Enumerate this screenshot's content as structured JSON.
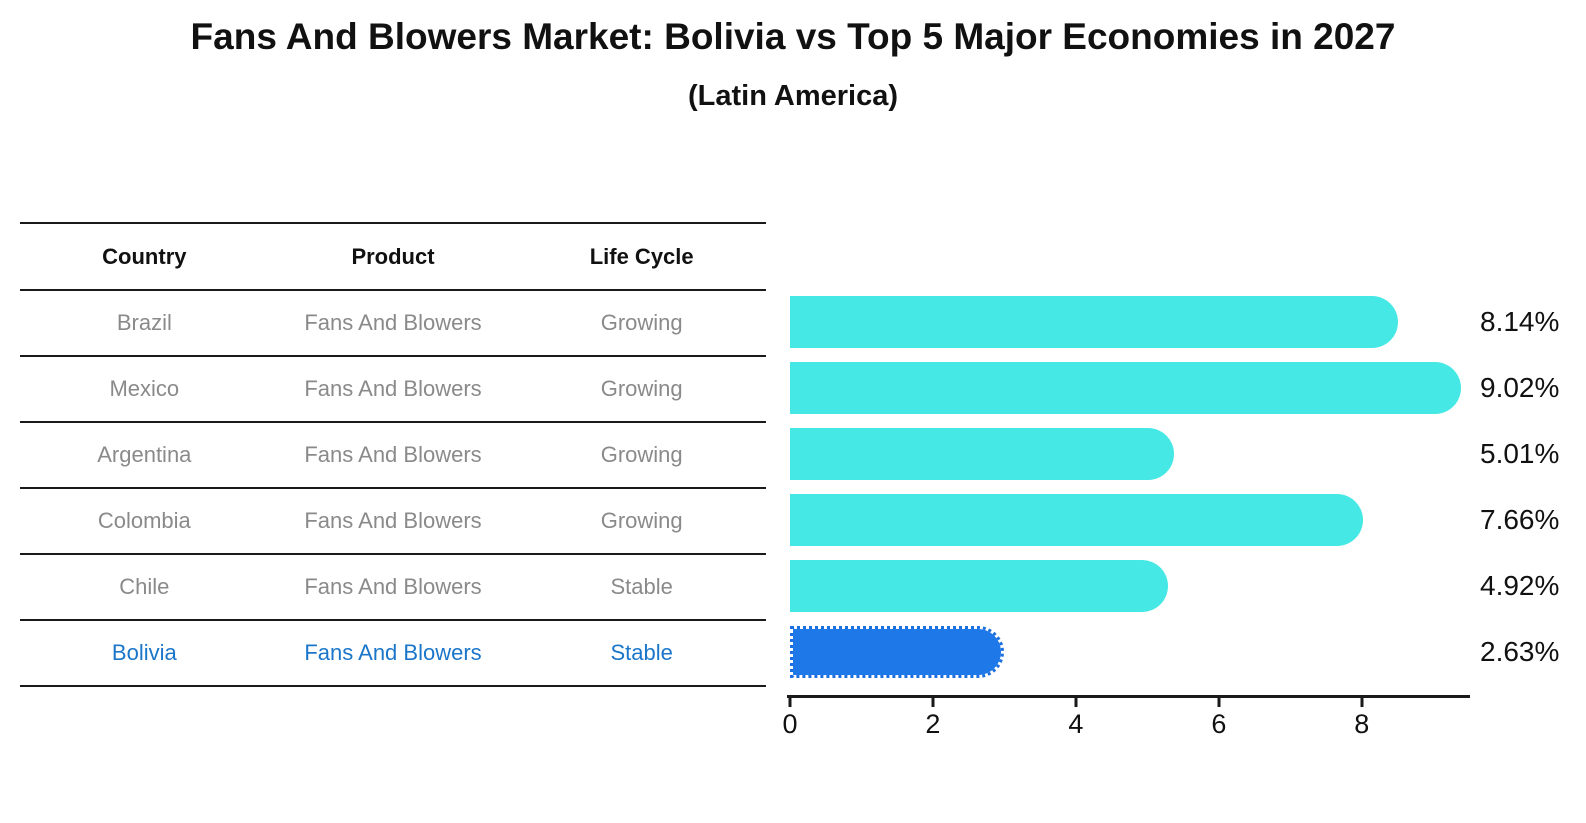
{
  "title": "Fans And Blowers Market: Bolivia vs Top 5 Major Economies in 2027",
  "subtitle": "(Latin America)",
  "table": {
    "headers": [
      "Country",
      "Product",
      "Life Cycle"
    ],
    "rows": [
      {
        "country": "Brazil",
        "product": "Fans And Blowers",
        "life_cycle": "Growing"
      },
      {
        "country": "Mexico",
        "product": "Fans And Blowers",
        "life_cycle": "Growing"
      },
      {
        "country": "Argentina",
        "product": "Fans And Blowers",
        "life_cycle": "Growing"
      },
      {
        "country": "Colombia",
        "product": "Fans And Blowers",
        "life_cycle": "Growing"
      },
      {
        "country": "Chile",
        "product": "Fans And Blowers",
        "life_cycle": "Stable"
      },
      {
        "country": "Bolivia",
        "product": "Fans And Blowers",
        "life_cycle": "Stable"
      }
    ]
  },
  "chart_data": {
    "type": "bar",
    "orientation": "horizontal",
    "title": "Fans And Blowers Market: Bolivia vs Top 5 Major Economies in 2027",
    "subtitle": "(Latin America)",
    "categories": [
      "Brazil",
      "Mexico",
      "Argentina",
      "Colombia",
      "Chile",
      "Bolivia"
    ],
    "values": [
      8.14,
      9.02,
      5.01,
      7.66,
      4.92,
      2.63
    ],
    "value_labels": [
      "8.14%",
      "9.02%",
      "5.01%",
      "7.66%",
      "4.92%",
      "2.63%"
    ],
    "x_ticks": [
      0,
      2,
      4,
      6,
      8
    ],
    "xlim": [
      0,
      9.5
    ],
    "grid": "off",
    "legend": "none",
    "highlight_index": 5,
    "bar_color": "#45e8e4",
    "highlight_bar_color": "#1e78e8",
    "highlight_text_color": "#1b76ca"
  }
}
